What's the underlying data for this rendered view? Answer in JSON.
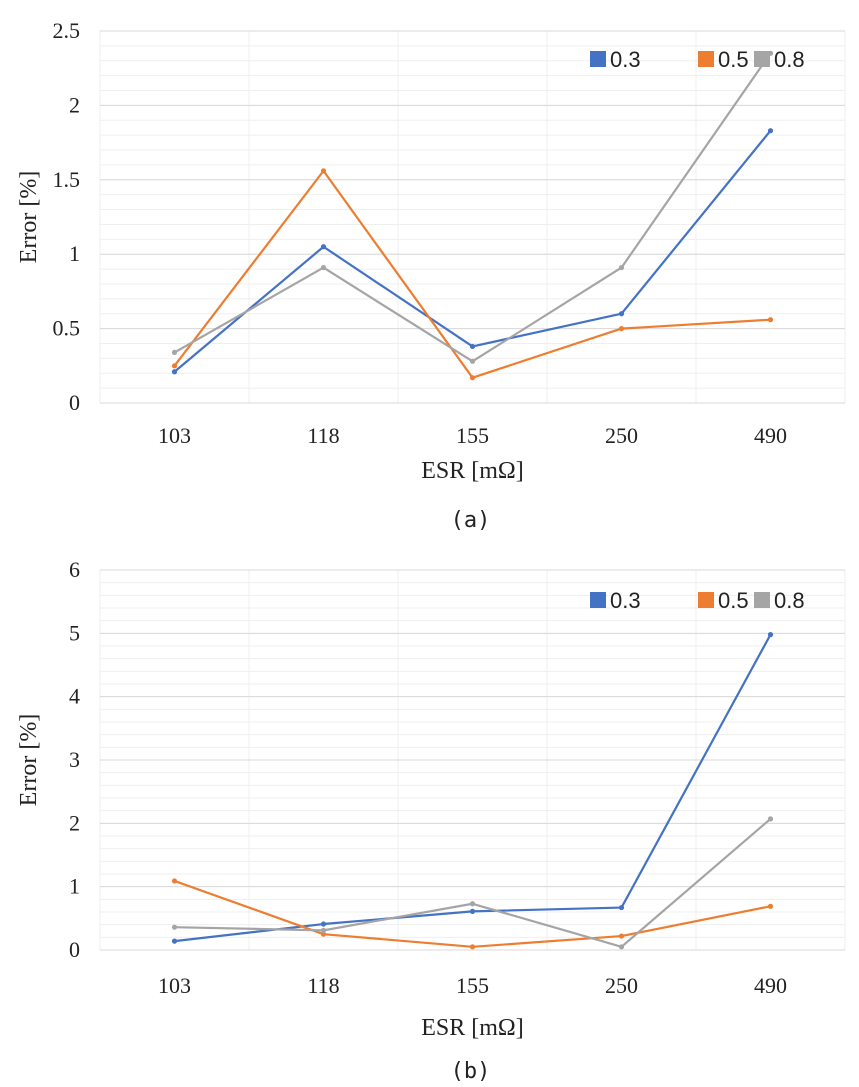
{
  "chart_data": [
    {
      "type": "line",
      "caption": "(a)",
      "xlabel": "ESR [mΩ]",
      "ylabel": "Error [%]",
      "categories": [
        "103",
        "118",
        "155",
        "250",
        "490"
      ],
      "ylim": [
        0,
        2.5
      ],
      "yticks": [
        0,
        0.5,
        1,
        1.5,
        2,
        2.5
      ],
      "ytick_labels": [
        "0",
        "0.5",
        "1",
        "1.5",
        "2",
        "2.5"
      ],
      "grid": true,
      "legend_position": "top-right",
      "series": [
        {
          "name": "0.3",
          "color": "#4472c4",
          "values": [
            0.21,
            1.05,
            0.38,
            0.6,
            1.83
          ]
        },
        {
          "name": "0.5",
          "color": "#ed7d31",
          "values": [
            0.25,
            1.56,
            0.17,
            0.5,
            0.56
          ]
        },
        {
          "name": "0.8",
          "color": "#a5a5a5",
          "values": [
            0.34,
            0.91,
            0.28,
            0.91,
            2.35
          ]
        }
      ]
    },
    {
      "type": "line",
      "caption": "(b)",
      "xlabel": "ESR [mΩ]",
      "ylabel": "Error [%]",
      "categories": [
        "103",
        "118",
        "155",
        "250",
        "490"
      ],
      "ylim": [
        0,
        6
      ],
      "yticks": [
        0,
        1,
        2,
        3,
        4,
        5,
        6
      ],
      "ytick_labels": [
        "0",
        "1",
        "2",
        "3",
        "4",
        "5",
        "6"
      ],
      "grid": true,
      "legend_position": "top-right",
      "series": [
        {
          "name": "0.3",
          "color": "#4472c4",
          "values": [
            0.14,
            0.41,
            0.61,
            0.67,
            4.98
          ]
        },
        {
          "name": "0.5",
          "color": "#ed7d31",
          "values": [
            1.09,
            0.25,
            0.05,
            0.22,
            0.69
          ]
        },
        {
          "name": "0.8",
          "color": "#a5a5a5",
          "values": [
            0.36,
            0.31,
            0.73,
            0.05,
            2.07
          ]
        }
      ]
    }
  ]
}
